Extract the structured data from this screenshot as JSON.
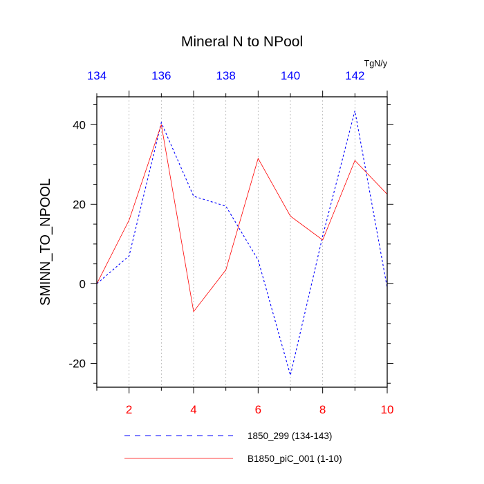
{
  "chart_data": {
    "type": "line",
    "title": "Mineral N to NPool",
    "units": "TgN/y",
    "ylabel": "SMINN_TO_NPOOL",
    "xlim": [
      1,
      10
    ],
    "ylim": [
      -26,
      47
    ],
    "bottom_ticks": [
      2,
      4,
      6,
      8,
      10
    ],
    "top_tick_labels": [
      "134",
      "136",
      "138",
      "140",
      "142"
    ],
    "y_ticks": [
      -20,
      0,
      20,
      40
    ],
    "grid": "vertical-dotted",
    "series": [
      {
        "name": "1850_299 (134-143)",
        "color": "#0000ff",
        "dash": "dashed",
        "x": [
          1,
          2,
          3,
          4,
          5,
          6,
          7,
          8,
          9,
          10
        ],
        "values": [
          0,
          7,
          40.5,
          22,
          19.5,
          6,
          -23,
          12,
          43.5,
          -1
        ]
      },
      {
        "name": "B1850_piC_001 (1-10)",
        "color": "#ff0000",
        "dash": "solid",
        "x": [
          1,
          2,
          3,
          4,
          5,
          6,
          7,
          8,
          9,
          10
        ],
        "values": [
          0,
          16,
          40,
          -7,
          3.5,
          31.5,
          17,
          11,
          31,
          22.5
        ]
      }
    ],
    "colors": {
      "bottom_axis": "#ff0000",
      "top_axis": "#0000ff",
      "frame": "#000000"
    }
  }
}
